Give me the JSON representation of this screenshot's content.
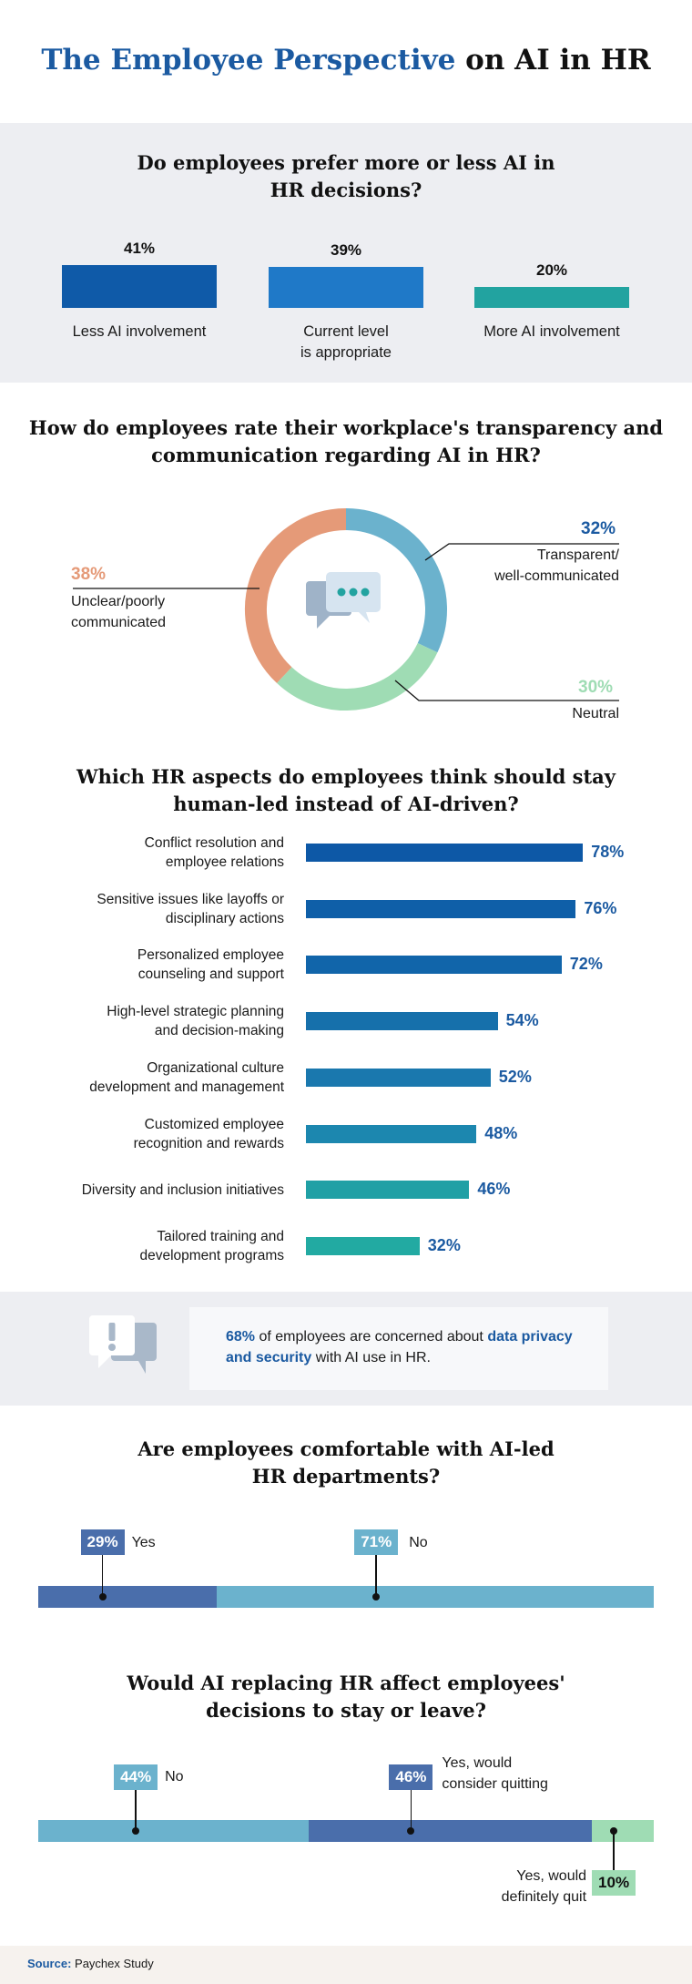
{
  "header": {
    "title_highlight": "The Employee Perspective",
    "title_rest": "on AI in HR"
  },
  "colors": {
    "navy": "#1b5aa1",
    "blue_dark": "#0f5aa8",
    "blue_mid": "#1f79c8",
    "teal": "#22a3a0",
    "orange": "#e59a78",
    "sky": "#6bb2cd",
    "mint": "#9fdcb4",
    "indigo": "#4a6eab"
  },
  "chart_data": [
    {
      "type": "bar",
      "title": "Do employees prefer more or less AI in HR decisions?",
      "categories": [
        "Less AI involvement",
        "Current level is appropriate",
        "More AI involvement"
      ],
      "category_lines": [
        [
          "Less AI involvement"
        ],
        [
          "Current level",
          "is appropriate"
        ],
        [
          "More AI involvement"
        ]
      ],
      "values": [
        41,
        39,
        20
      ],
      "value_labels": [
        "41%",
        "39%",
        "20%"
      ],
      "unit": "%"
    },
    {
      "type": "pie",
      "title": "How do employees rate their workplace's transparency and communication regarding AI in HR?",
      "slices": [
        {
          "label": "Transparent/ well-communicated",
          "lines": [
            "Transparent/",
            "well-communicated"
          ],
          "value": 32,
          "value_label": "32%"
        },
        {
          "label": "Neutral",
          "lines": [
            "Neutral"
          ],
          "value": 30,
          "value_label": "30%"
        },
        {
          "label": "Unclear/poorly communicated",
          "lines": [
            "Unclear/poorly",
            "communicated"
          ],
          "value": 38,
          "value_label": "38%"
        }
      ]
    },
    {
      "type": "bar",
      "orientation": "horizontal",
      "title": "Which HR aspects do employees think should stay human-led instead of AI-driven?",
      "categories": [
        "Conflict resolution and employee relations",
        "Sensitive issues like layoffs or disciplinary actions",
        "Personalized employee counseling and support",
        "High-level strategic planning and decision-making",
        "Organizational culture development and management",
        "Customized employee recognition and rewards",
        "Diversity and inclusion initiatives",
        "Tailored training and development programs"
      ],
      "category_lines": [
        [
          "Conflict resolution and",
          "employee relations"
        ],
        [
          "Sensitive issues like layoffs or",
          "disciplinary actions"
        ],
        [
          "Personalized employee",
          "counseling and support"
        ],
        [
          "High-level strategic planning",
          "and decision-making"
        ],
        [
          "Organizational culture",
          "development and management"
        ],
        [
          "Customized employee",
          "recognition and rewards"
        ],
        [
          "Diversity and inclusion initiatives"
        ],
        [
          "Tailored training and",
          "development programs"
        ]
      ],
      "values": [
        78,
        76,
        72,
        54,
        52,
        48,
        46,
        32
      ],
      "value_labels": [
        "78%",
        "76%",
        "72%",
        "54%",
        "52%",
        "48%",
        "46%",
        "32%"
      ],
      "unit": "%"
    },
    {
      "type": "bar",
      "orientation": "stacked-horizontal",
      "title": "Are employees comfortable with AI-led HR departments?",
      "segments": [
        {
          "label": "Yes",
          "value": 29,
          "value_label": "29%"
        },
        {
          "label": "No",
          "value": 71,
          "value_label": "71%"
        }
      ]
    },
    {
      "type": "bar",
      "orientation": "stacked-horizontal",
      "title": "Would AI replacing HR affect employees' decisions to stay or leave?",
      "segments": [
        {
          "label": "No",
          "value": 44,
          "value_label": "44%"
        },
        {
          "label": "Yes, would consider quitting",
          "lines": [
            "Yes, would",
            "consider quitting"
          ],
          "value": 46,
          "value_label": "46%"
        },
        {
          "label": "Yes, would definitely quit",
          "lines": [
            "Yes, would",
            "definitely quit"
          ],
          "value": 10,
          "value_label": "10%"
        }
      ]
    }
  ],
  "sections": {
    "q1_lines": [
      "Do employees prefer more or less AI in",
      "HR decisions?"
    ],
    "q2_lines": [
      "How do employees rate their workplace's transparency and",
      "communication regarding AI in HR?"
    ],
    "q3_lines": [
      "Which HR aspects do employees think should stay",
      "human-led instead of AI-driven?"
    ],
    "q4_lines": [
      "Are employees comfortable with AI-led",
      "HR departments?"
    ],
    "q5_lines": [
      "Would AI replacing HR affect employees'",
      "decisions to stay or leave?"
    ]
  },
  "callout": {
    "pct": "68%",
    "text_a": " of employees are concerned about ",
    "emph": "data privacy and security",
    "text_b": " with AI use in HR."
  },
  "footer": {
    "source_label": "Source:",
    "source_text": " Paychex Study"
  }
}
